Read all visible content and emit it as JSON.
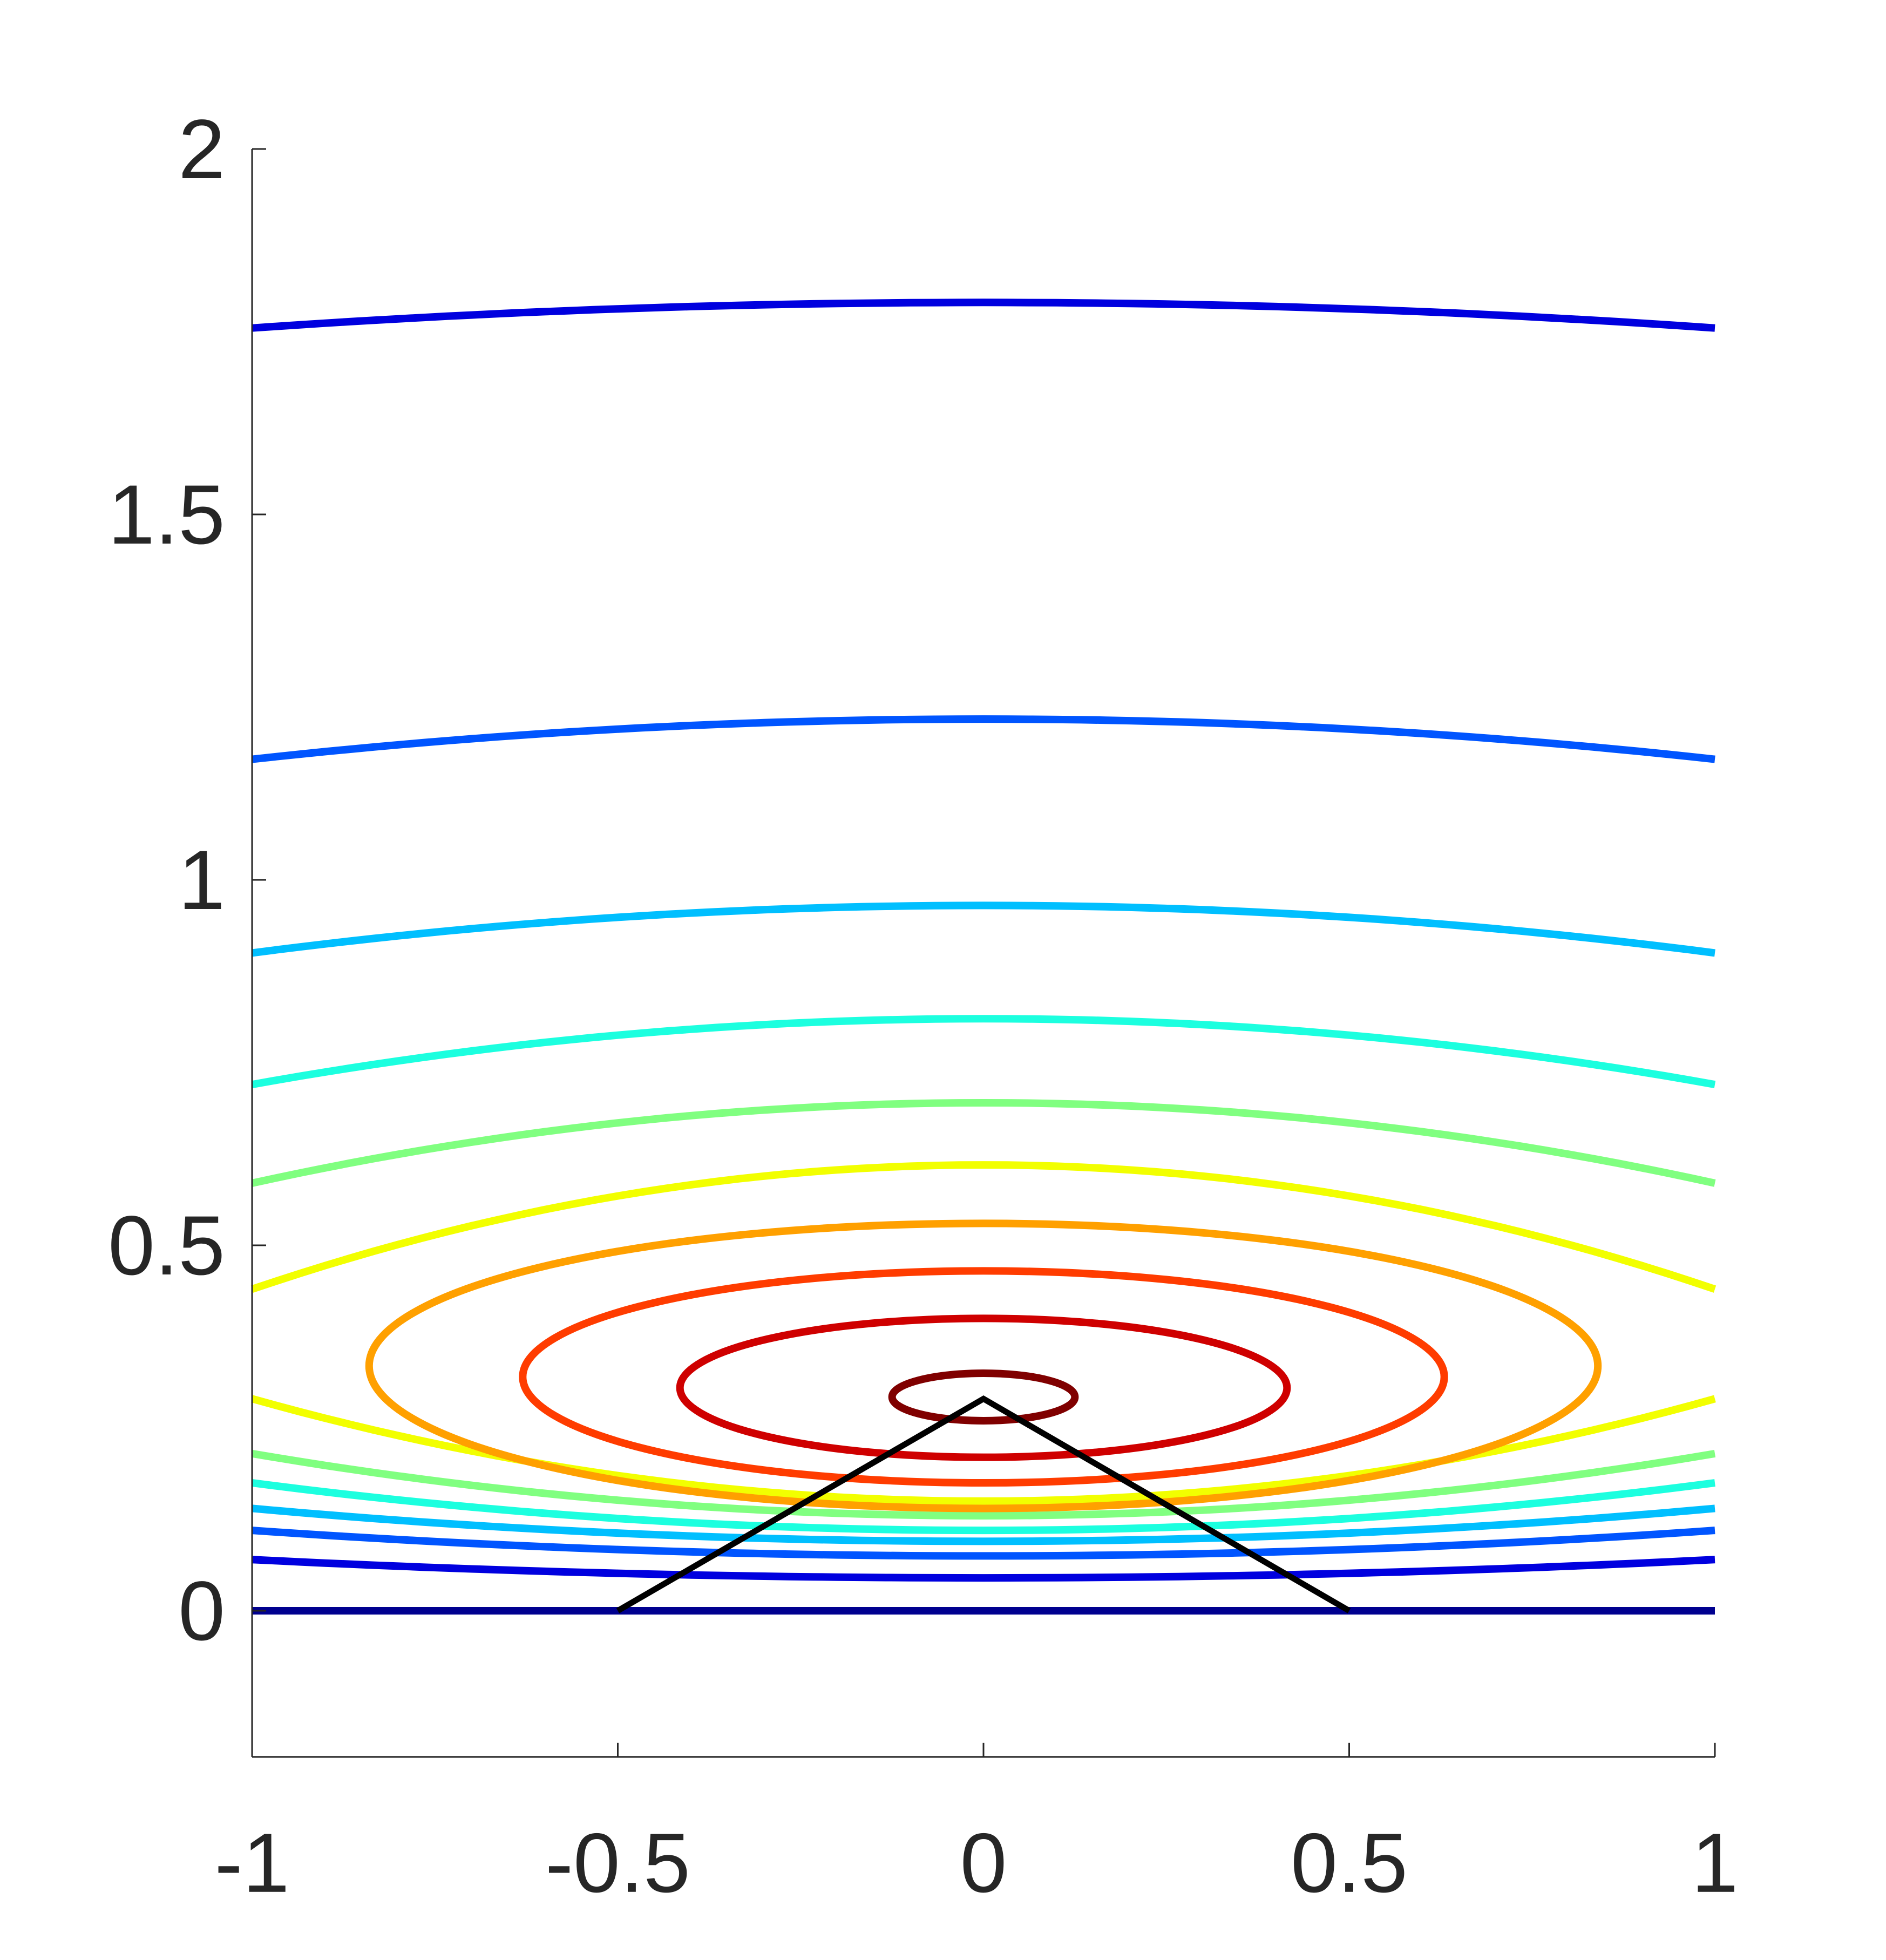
{
  "chart_data": {
    "type": "contour",
    "xlim": [
      -1,
      1
    ],
    "ylim": [
      -0.2,
      2
    ],
    "x_ticks": [
      -1,
      -0.5,
      0,
      0.5,
      1
    ],
    "y_ticks": [
      0,
      0.5,
      1,
      1.5,
      2
    ],
    "x_tick_labels": [
      "-1",
      "-0.5",
      "0",
      "0.5",
      "1"
    ],
    "y_tick_labels": [
      "0",
      "0.5",
      "1",
      "1.5",
      "2"
    ],
    "grid": false,
    "colormap": "jet",
    "contours": [
      {
        "kind": "line",
        "color": "#00008f",
        "y_center": 0.0,
        "y_edge": 0.0
      },
      {
        "kind": "split",
        "color": "#0000df",
        "upper": [
          1.79,
          1.755
        ],
        "lower": [
          0.045,
          0.07
        ]
      },
      {
        "kind": "split",
        "color": "#0055ff",
        "upper": [
          1.22,
          1.165
        ],
        "lower": [
          0.075,
          0.11
        ]
      },
      {
        "kind": "split",
        "color": "#00bfff",
        "upper": [
          0.965,
          0.9
        ],
        "lower": [
          0.095,
          0.14
        ]
      },
      {
        "kind": "split",
        "color": "#1cffdf",
        "upper": [
          0.81,
          0.72
        ],
        "lower": [
          0.11,
          0.175
        ]
      },
      {
        "kind": "split",
        "color": "#80ff80",
        "upper": [
          0.695,
          0.585
        ],
        "lower": [
          0.13,
          0.215
        ]
      },
      {
        "kind": "split",
        "color": "#f2ff00",
        "upper": [
          0.61,
          0.44
        ],
        "lower": [
          0.15,
          0.29
        ]
      },
      {
        "kind": "ellipse",
        "color": "#ffa000",
        "cx": 0.0,
        "cy": 0.335,
        "rx": 0.84,
        "top": 0.53,
        "bottom": 0.14
      },
      {
        "kind": "ellipse",
        "color": "#ff3c00",
        "cx": 0.0,
        "cy": 0.31,
        "rx": 0.63,
        "top": 0.465,
        "bottom": 0.175
      },
      {
        "kind": "ellipse",
        "color": "#cf0000",
        "cx": 0.0,
        "cy": 0.305,
        "rx": 0.415,
        "top": 0.4,
        "bottom": 0.21
      },
      {
        "kind": "ellipse",
        "color": "#800000",
        "cx": 0.0,
        "cy": 0.295,
        "rx": 0.125,
        "top": 0.325,
        "bottom": 0.26
      }
    ],
    "overlay_polyline": {
      "color": "#000000",
      "points": [
        [
          -0.5,
          0.0
        ],
        [
          0.0,
          0.29
        ],
        [
          0.5,
          0.0
        ]
      ]
    }
  }
}
